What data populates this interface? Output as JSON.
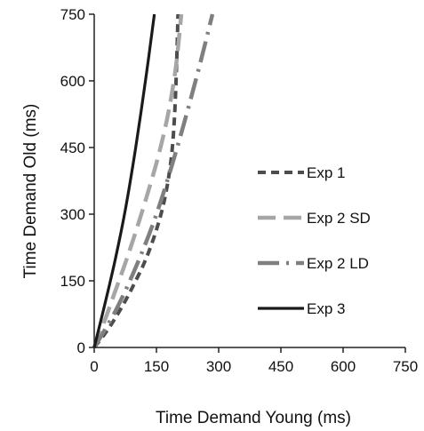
{
  "chart_data": {
    "type": "line",
    "title": "",
    "xlabel": "Time Demand Young (ms)",
    "ylabel": "Time Demand Old (ms)",
    "xlim": [
      0,
      750
    ],
    "ylim": [
      0,
      750
    ],
    "x_ticks": [
      0,
      150,
      300,
      450,
      600,
      750
    ],
    "y_ticks": [
      0,
      150,
      300,
      450,
      600,
      750
    ],
    "grid": false,
    "legend_position": "right-middle",
    "series": [
      {
        "name": "Exp 1",
        "color": "#4d4d4d",
        "dash": "short-dash",
        "x": [
          0,
          25,
          50,
          75,
          100,
          125,
          150,
          170,
          185,
          193,
          198,
          202
        ],
        "y": [
          0,
          30,
          65,
          105,
          150,
          200,
          265,
          335,
          420,
          510,
          620,
          750
        ]
      },
      {
        "name": "Exp 2 SD",
        "color": "#a6a6a6",
        "dash": "long-dash",
        "x": [
          0,
          25,
          50,
          75,
          100,
          125,
          150,
          170,
          185,
          198,
          210
        ],
        "y": [
          0,
          60,
          125,
          190,
          260,
          335,
          415,
          490,
          560,
          640,
          750
        ]
      },
      {
        "name": "Exp 2 LD",
        "color": "#7f7f7f",
        "dash": "dash-dot",
        "x": [
          0,
          50,
          100,
          150,
          200,
          250,
          285
        ],
        "y": [
          0,
          80,
          180,
          300,
          450,
          620,
          750
        ]
      },
      {
        "name": "Exp 3",
        "color": "#1a1a1a",
        "dash": "solid",
        "x": [
          0,
          25,
          50,
          75,
          100,
          125,
          145
        ],
        "y": [
          0,
          95,
          195,
          310,
          450,
          610,
          750
        ]
      }
    ]
  }
}
